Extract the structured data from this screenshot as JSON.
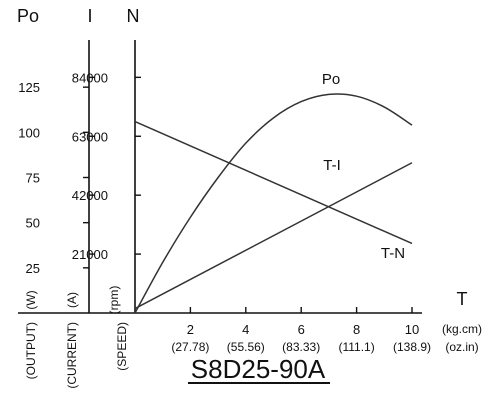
{
  "chart_data": {
    "type": "line",
    "title": "S8D25-90A",
    "x_axis": {
      "label": "T",
      "unit_primary": "(kg.cm)",
      "unit_secondary": "(oz.in)",
      "range": [
        0,
        10
      ],
      "ticks": [
        {
          "value": 2,
          "label": "2",
          "sublabel": "(27.78)"
        },
        {
          "value": 4,
          "label": "4",
          "sublabel": "(55.56)"
        },
        {
          "value": 6,
          "label": "6",
          "sublabel": "(83.33)"
        },
        {
          "value": 8,
          "label": "8",
          "sublabel": "(111.1)"
        },
        {
          "value": 10,
          "label": "10",
          "sublabel": "(138.9)"
        }
      ]
    },
    "y_axes": [
      {
        "key": "output",
        "symbol": "Po",
        "unit": "(W)",
        "name": "(OUTPUT)",
        "range": [
          0,
          150
        ],
        "ticks": [
          {
            "value": 25,
            "label": "25"
          },
          {
            "value": 50,
            "label": "50"
          },
          {
            "value": 75,
            "label": "75"
          },
          {
            "value": 100,
            "label": "100"
          },
          {
            "value": 125,
            "label": "125"
          }
        ]
      },
      {
        "key": "current",
        "symbol": "I",
        "unit": "(A)",
        "name": "(CURRENT)",
        "range": [
          0,
          9.2
        ],
        "ticks": [
          {
            "value": 2,
            "label": "2"
          },
          {
            "value": 4,
            "label": "4"
          },
          {
            "value": 6,
            "label": "6"
          },
          {
            "value": 8,
            "label": "8"
          }
        ]
      },
      {
        "key": "speed",
        "symbol": "N",
        "unit": "(rpm)",
        "name": "(SPEED)",
        "range": [
          0,
          4600
        ],
        "ticks": [
          {
            "value": 1000,
            "label": "1000"
          },
          {
            "value": 2000,
            "label": "2000"
          },
          {
            "value": 3000,
            "label": "3000"
          },
          {
            "value": 4000,
            "label": "4000"
          }
        ]
      }
    ],
    "series": [
      {
        "name": "Po",
        "axis": "output",
        "x": [
          0,
          1,
          2,
          3,
          4,
          5,
          6,
          7,
          8,
          9,
          10
        ],
        "y": [
          0,
          28,
          53,
          75,
          94,
          108,
          117,
          121,
          120,
          114,
          104
        ]
      },
      {
        "name": "T-I",
        "axis": "current",
        "x": [
          0,
          10
        ],
        "y": [
          0.15,
          5.1
        ]
      },
      {
        "name": "T-N",
        "axis": "speed",
        "x": [
          0,
          10
        ],
        "y": [
          3250,
          1180
        ]
      }
    ]
  }
}
